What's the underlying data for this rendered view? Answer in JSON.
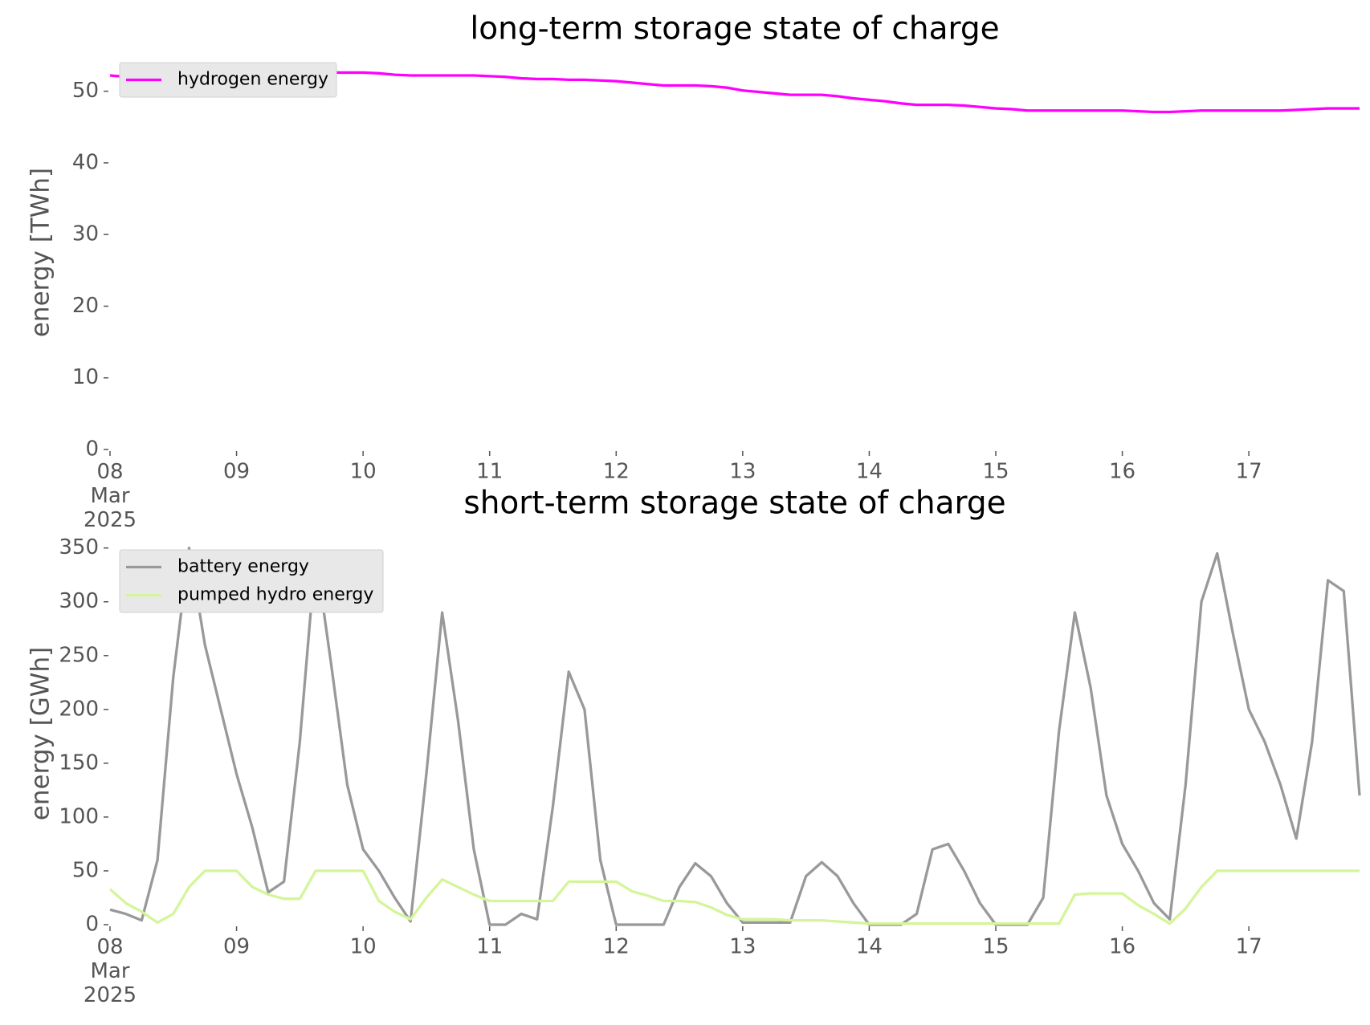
{
  "chart_data": [
    {
      "type": "line",
      "title": "long-term storage state of charge",
      "ylabel": "energy [TWh]",
      "legend": "upper left",
      "x": [
        "2025-03-08 00:00",
        "2025-03-08 03:00",
        "2025-03-08 06:00",
        "2025-03-08 09:00",
        "2025-03-08 12:00",
        "2025-03-08 15:00",
        "2025-03-08 18:00",
        "2025-03-08 21:00",
        "2025-03-09 00:00",
        "2025-03-09 03:00",
        "2025-03-09 06:00",
        "2025-03-09 09:00",
        "2025-03-09 12:00",
        "2025-03-09 15:00",
        "2025-03-09 18:00",
        "2025-03-09 21:00",
        "2025-03-10 00:00",
        "2025-03-10 03:00",
        "2025-03-10 06:00",
        "2025-03-10 09:00",
        "2025-03-10 12:00",
        "2025-03-10 15:00",
        "2025-03-10 18:00",
        "2025-03-10 21:00",
        "2025-03-11 00:00",
        "2025-03-11 03:00",
        "2025-03-11 06:00",
        "2025-03-11 09:00",
        "2025-03-11 12:00",
        "2025-03-11 15:00",
        "2025-03-11 18:00",
        "2025-03-11 21:00",
        "2025-03-12 00:00",
        "2025-03-12 03:00",
        "2025-03-12 06:00",
        "2025-03-12 09:00",
        "2025-03-12 12:00",
        "2025-03-12 15:00",
        "2025-03-12 18:00",
        "2025-03-12 21:00",
        "2025-03-13 00:00",
        "2025-03-13 03:00",
        "2025-03-13 06:00",
        "2025-03-13 09:00",
        "2025-03-13 12:00",
        "2025-03-13 15:00",
        "2025-03-13 18:00",
        "2025-03-13 21:00",
        "2025-03-14 00:00",
        "2025-03-14 03:00",
        "2025-03-14 06:00",
        "2025-03-14 09:00",
        "2025-03-14 12:00",
        "2025-03-14 15:00",
        "2025-03-14 18:00",
        "2025-03-14 21:00",
        "2025-03-15 00:00",
        "2025-03-15 03:00",
        "2025-03-15 06:00",
        "2025-03-15 09:00",
        "2025-03-15 12:00",
        "2025-03-15 15:00",
        "2025-03-15 18:00",
        "2025-03-15 21:00",
        "2025-03-16 00:00",
        "2025-03-16 03:00",
        "2025-03-16 06:00",
        "2025-03-16 09:00",
        "2025-03-16 12:00",
        "2025-03-16 15:00",
        "2025-03-16 18:00",
        "2025-03-16 21:00",
        "2025-03-17 00:00",
        "2025-03-17 03:00",
        "2025-03-17 06:00",
        "2025-03-17 09:00",
        "2025-03-17 12:00",
        "2025-03-17 15:00",
        "2025-03-17 18:00",
        "2025-03-17 21:00"
      ],
      "series": [
        {
          "name": "hydrogen energy",
          "color": "#ff00ff",
          "values": [
            52.2,
            52.0,
            51.9,
            51.8,
            51.9,
            52.0,
            52.0,
            52.1,
            52.1,
            52.2,
            52.2,
            52.3,
            52.4,
            52.5,
            52.6,
            52.6,
            52.6,
            52.5,
            52.3,
            52.2,
            52.2,
            52.2,
            52.2,
            52.2,
            52.1,
            52.0,
            51.8,
            51.7,
            51.7,
            51.6,
            51.6,
            51.5,
            51.4,
            51.2,
            51.0,
            50.8,
            50.8,
            50.8,
            50.7,
            50.5,
            50.1,
            49.9,
            49.7,
            49.5,
            49.5,
            49.5,
            49.3,
            49.0,
            48.8,
            48.6,
            48.3,
            48.1,
            48.1,
            48.1,
            48.0,
            47.8,
            47.6,
            47.5,
            47.3,
            47.3,
            47.3,
            47.3,
            47.3,
            47.3,
            47.3,
            47.2,
            47.1,
            47.1,
            47.2,
            47.3,
            47.3,
            47.3,
            47.3,
            47.3,
            47.3,
            47.4,
            47.5,
            47.6,
            47.6,
            47.6
          ]
        }
      ],
      "xlim": [
        "2025-03-08 00:00",
        "2025-03-17 21:00"
      ],
      "xticks": [
        {
          "value": "2025-03-08 00:00",
          "label": "08\nMar\n2025"
        },
        {
          "value": "2025-03-09 00:00",
          "label": "09"
        },
        {
          "value": "2025-03-10 00:00",
          "label": "10"
        },
        {
          "value": "2025-03-11 00:00",
          "label": "11"
        },
        {
          "value": "2025-03-12 00:00",
          "label": "12"
        },
        {
          "value": "2025-03-13 00:00",
          "label": "13"
        },
        {
          "value": "2025-03-14 00:00",
          "label": "14"
        },
        {
          "value": "2025-03-15 00:00",
          "label": "15"
        },
        {
          "value": "2025-03-16 00:00",
          "label": "16"
        },
        {
          "value": "2025-03-17 00:00",
          "label": "17"
        }
      ],
      "ylim": [
        0,
        55
      ],
      "yticks": [
        0,
        10,
        20,
        30,
        40,
        50
      ],
      "grid": false
    },
    {
      "type": "line",
      "title": "short-term storage state of charge",
      "ylabel": "energy [GWh]",
      "legend": "upper left",
      "x": [
        "2025-03-08 00:00",
        "2025-03-08 03:00",
        "2025-03-08 06:00",
        "2025-03-08 09:00",
        "2025-03-08 12:00",
        "2025-03-08 15:00",
        "2025-03-08 18:00",
        "2025-03-08 21:00",
        "2025-03-09 00:00",
        "2025-03-09 03:00",
        "2025-03-09 06:00",
        "2025-03-09 09:00",
        "2025-03-09 12:00",
        "2025-03-09 15:00",
        "2025-03-09 18:00",
        "2025-03-09 21:00",
        "2025-03-10 00:00",
        "2025-03-10 03:00",
        "2025-03-10 06:00",
        "2025-03-10 09:00",
        "2025-03-10 12:00",
        "2025-03-10 15:00",
        "2025-03-10 18:00",
        "2025-03-10 21:00",
        "2025-03-11 00:00",
        "2025-03-11 03:00",
        "2025-03-11 06:00",
        "2025-03-11 09:00",
        "2025-03-11 12:00",
        "2025-03-11 15:00",
        "2025-03-11 18:00",
        "2025-03-11 21:00",
        "2025-03-12 00:00",
        "2025-03-12 03:00",
        "2025-03-12 06:00",
        "2025-03-12 09:00",
        "2025-03-12 12:00",
        "2025-03-12 15:00",
        "2025-03-12 18:00",
        "2025-03-12 21:00",
        "2025-03-13 00:00",
        "2025-03-13 03:00",
        "2025-03-13 06:00",
        "2025-03-13 09:00",
        "2025-03-13 12:00",
        "2025-03-13 15:00",
        "2025-03-13 18:00",
        "2025-03-13 21:00",
        "2025-03-14 00:00",
        "2025-03-14 03:00",
        "2025-03-14 06:00",
        "2025-03-14 09:00",
        "2025-03-14 12:00",
        "2025-03-14 15:00",
        "2025-03-14 18:00",
        "2025-03-14 21:00",
        "2025-03-15 00:00",
        "2025-03-15 03:00",
        "2025-03-15 06:00",
        "2025-03-15 09:00",
        "2025-03-15 12:00",
        "2025-03-15 15:00",
        "2025-03-15 18:00",
        "2025-03-15 21:00",
        "2025-03-16 00:00",
        "2025-03-16 03:00",
        "2025-03-16 06:00",
        "2025-03-16 09:00",
        "2025-03-16 12:00",
        "2025-03-16 15:00",
        "2025-03-16 18:00",
        "2025-03-16 21:00",
        "2025-03-17 00:00",
        "2025-03-17 03:00",
        "2025-03-17 06:00",
        "2025-03-17 09:00",
        "2025-03-17 12:00",
        "2025-03-17 15:00",
        "2025-03-17 18:00",
        "2025-03-17 21:00"
      ],
      "series": [
        {
          "name": "battery energy",
          "color": "#999999",
          "values": [
            14,
            10,
            4,
            60,
            230,
            350,
            260,
            200,
            140,
            90,
            30,
            40,
            170,
            345,
            240,
            130,
            70,
            50,
            25,
            3,
            140,
            290,
            190,
            70,
            0,
            0,
            10,
            5,
            110,
            235,
            200,
            60,
            0,
            0,
            0,
            0,
            35,
            57,
            45,
            20,
            2,
            2,
            2,
            2,
            45,
            58,
            45,
            20,
            0,
            0,
            0,
            10,
            70,
            75,
            50,
            20,
            0,
            0,
            0,
            25,
            180,
            290,
            220,
            120,
            75,
            50,
            20,
            5,
            130,
            300,
            345,
            270,
            200,
            170,
            130,
            80,
            170,
            320,
            310,
            120
          ]
        },
        {
          "name": "pumped hydro energy",
          "color": "#d4f59a",
          "values": [
            33,
            20,
            12,
            2,
            10,
            35,
            50,
            50,
            50,
            35,
            28,
            24,
            24,
            50,
            50,
            50,
            50,
            22,
            12,
            5,
            25,
            42,
            35,
            28,
            22,
            22,
            22,
            22,
            22,
            40,
            40,
            40,
            40,
            31,
            27,
            22,
            22,
            21,
            16,
            9,
            5,
            5,
            5,
            4,
            4,
            4,
            3,
            2,
            1,
            1,
            1,
            1,
            1,
            1,
            1,
            1,
            1,
            1,
            1,
            1,
            1,
            28,
            29,
            29,
            29,
            18,
            10,
            1,
            15,
            35,
            50,
            50,
            50,
            50,
            50,
            50,
            50,
            50,
            50,
            50
          ]
        }
      ],
      "xlim": [
        "2025-03-08 00:00",
        "2025-03-17 21:00"
      ],
      "xticks": [
        {
          "value": "2025-03-08 00:00",
          "label": "08\nMar\n2025"
        },
        {
          "value": "2025-03-09 00:00",
          "label": "09"
        },
        {
          "value": "2025-03-10 00:00",
          "label": "10"
        },
        {
          "value": "2025-03-11 00:00",
          "label": "11"
        },
        {
          "value": "2025-03-12 00:00",
          "label": "12"
        },
        {
          "value": "2025-03-13 00:00",
          "label": "13"
        },
        {
          "value": "2025-03-14 00:00",
          "label": "14"
        },
        {
          "value": "2025-03-15 00:00",
          "label": "15"
        },
        {
          "value": "2025-03-16 00:00",
          "label": "16"
        },
        {
          "value": "2025-03-17 00:00",
          "label": "17"
        }
      ],
      "ylim": [
        0,
        355
      ],
      "yticks": [
        0,
        50,
        100,
        150,
        200,
        250,
        300,
        350
      ],
      "grid": false
    }
  ]
}
